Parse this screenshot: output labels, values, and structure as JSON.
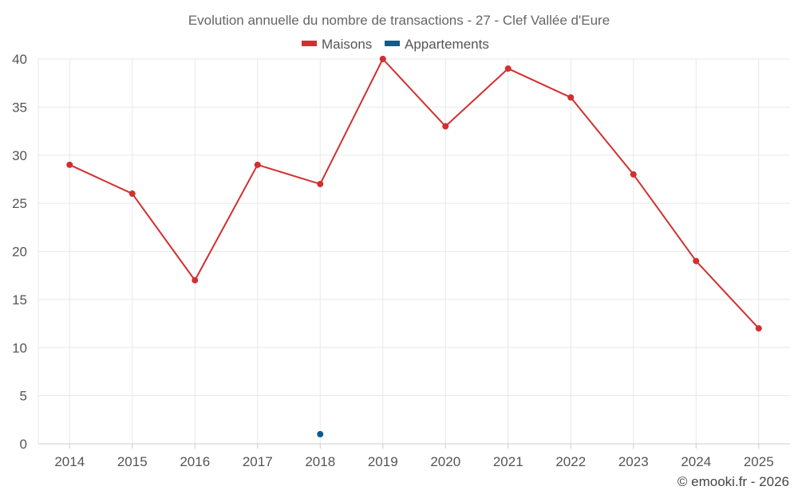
{
  "chart_data": {
    "type": "line",
    "title": "Evolution annuelle du nombre de transactions - 27 - Clef Vallée d'Eure",
    "categories": [
      "2014",
      "2015",
      "2016",
      "2017",
      "2018",
      "2019",
      "2020",
      "2021",
      "2022",
      "2023",
      "2024",
      "2025"
    ],
    "series": [
      {
        "name": "Maisons",
        "color": "#d32f2f",
        "values": [
          29,
          26,
          17,
          29,
          27,
          40,
          33,
          39,
          36,
          28,
          19,
          12
        ]
      },
      {
        "name": "Appartements",
        "color": "#0d5c91",
        "values": [
          null,
          null,
          null,
          null,
          1,
          null,
          null,
          null,
          null,
          null,
          null,
          null
        ]
      }
    ],
    "ylim": [
      0,
      40
    ],
    "yticks": [
      0,
      5,
      10,
      15,
      20,
      25,
      30,
      35,
      40
    ],
    "grid": true,
    "legend_position": "top-center",
    "xlabel": "",
    "ylabel": ""
  },
  "credit": "© emooki.fr - 2026"
}
